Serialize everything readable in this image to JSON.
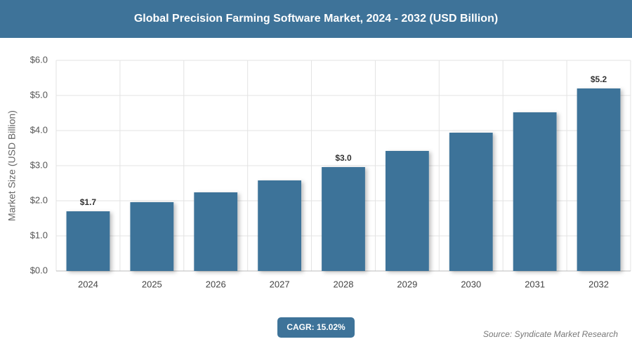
{
  "chart_data": {
    "type": "bar",
    "title": "Global Precision Farming Software Market, 2024 - 2032 (USD Billion)",
    "y_label": "Market Size (USD Billion)",
    "categories": [
      "2024",
      "2025",
      "2026",
      "2027",
      "2028",
      "2029",
      "2030",
      "2031",
      "2032"
    ],
    "values": [
      1.7,
      1.96,
      2.24,
      2.58,
      2.96,
      3.42,
      3.94,
      4.52,
      5.2
    ],
    "value_labels": [
      "$1.7",
      null,
      null,
      null,
      "$3.0",
      null,
      null,
      null,
      "$5.2"
    ],
    "color": "#3e7399",
    "ylim": [
      0,
      6
    ],
    "yticks": [
      {
        "value": 0,
        "label": "$0.0"
      },
      {
        "value": 1,
        "label": "$1.0"
      },
      {
        "value": 2,
        "label": "$2.0"
      },
      {
        "value": 3,
        "label": "$3.0"
      },
      {
        "value": 4,
        "label": "$4.0"
      },
      {
        "value": 5,
        "label": "$5.0"
      },
      {
        "value": 6,
        "label": "$6.0"
      }
    ],
    "grid": true,
    "cagr_label": "CAGR: 15.02%",
    "source": "Source: Syndicate Market Research"
  }
}
